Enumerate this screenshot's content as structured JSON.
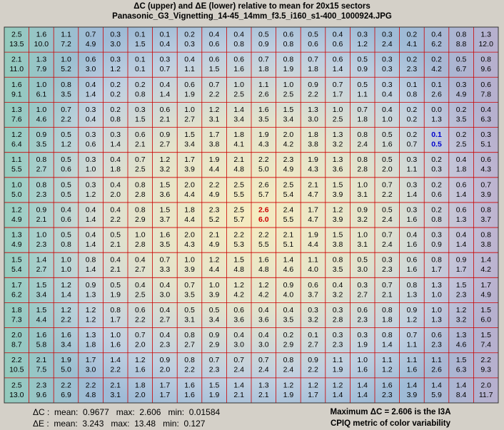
{
  "title_line1": "ΔC  (upper) and ΔE  (lower) relative to mean for 20x15 sectors",
  "title_line2": "Panasonic_G3_Vignetting_14-45_14mm_f3.5_i160_s1-400_1000924.JPG",
  "stats": {
    "dc_line": "ΔC :  mean:  0.9677   max:  2.606   min:  0.01584",
    "de_line": "ΔE :  mean:  3.243   max:  13.48   min:  0.127"
  },
  "metric": {
    "line1": "Maximum ΔC = 2.606 is the I3A",
    "line2": "CPIQ metric of color variability"
  },
  "colors": {
    "grid_line": "#cc0000",
    "max_marker": "#cc0000",
    "min_marker": "#0000cc",
    "border": "#333333"
  },
  "chart_data": {
    "type": "heatmap",
    "columns": 20,
    "rows": 15,
    "highlight_max": {
      "row": 7,
      "col": 10
    },
    "highlight_min": {
      "row": 4,
      "col": 17
    },
    "upper_dC": [
      [
        "2.5",
        "1.6",
        "1.1",
        "0.7",
        "0.3",
        "0.1",
        "0.1",
        "0.2",
        "0.4",
        "0.4",
        "0.5",
        "0.6",
        "0.5",
        "0.4",
        "0.3",
        "0.3",
        "0.2",
        "0.4",
        "0.8",
        "1.3"
      ],
      [
        "2.1",
        "1.3",
        "1.0",
        "0.6",
        "0.3",
        "0.1",
        "0.3",
        "0.4",
        "0.6",
        "0.6",
        "0.7",
        "0.8",
        "0.7",
        "0.6",
        "0.5",
        "0.3",
        "0.2",
        "0.2",
        "0.5",
        "0.8"
      ],
      [
        "1.6",
        "1.0",
        "0.8",
        "0.4",
        "0.2",
        "0.2",
        "0.4",
        "0.6",
        "0.7",
        "1.0",
        "1.1",
        "1.0",
        "0.9",
        "0.7",
        "0.5",
        "0.3",
        "0.1",
        "0.1",
        "0.3",
        "0.6"
      ],
      [
        "1.3",
        "1.0",
        "0.7",
        "0.3",
        "0.2",
        "0.3",
        "0.6",
        "1.0",
        "1.2",
        "1.4",
        "1.6",
        "1.5",
        "1.3",
        "1.0",
        "0.7",
        "0.4",
        "0.2",
        "0.0",
        "0.2",
        "0.4"
      ],
      [
        "1.2",
        "0.9",
        "0.5",
        "0.3",
        "0.3",
        "0.6",
        "0.9",
        "1.5",
        "1.7",
        "1.8",
        "1.9",
        "2.0",
        "1.8",
        "1.3",
        "0.8",
        "0.5",
        "0.2",
        "0.1",
        "0.2",
        "0.3"
      ],
      [
        "1.1",
        "0.8",
        "0.5",
        "0.3",
        "0.4",
        "0.7",
        "1.2",
        "1.7",
        "1.9",
        "2.1",
        "2.2",
        "2.3",
        "1.9",
        "1.3",
        "0.8",
        "0.5",
        "0.3",
        "0.2",
        "0.4",
        "0.6"
      ],
      [
        "1.0",
        "0.8",
        "0.5",
        "0.3",
        "0.4",
        "0.8",
        "1.5",
        "2.0",
        "2.2",
        "2.5",
        "2.6",
        "2.5",
        "2.1",
        "1.5",
        "1.0",
        "0.7",
        "0.3",
        "0.2",
        "0.6",
        "0.7"
      ],
      [
        "1.2",
        "0.9",
        "0.4",
        "0.4",
        "0.4",
        "0.8",
        "1.5",
        "1.8",
        "2.3",
        "2.5",
        "2.6",
        "2.4",
        "1.7",
        "1.2",
        "0.9",
        "0.5",
        "0.3",
        "0.2",
        "0.6",
        "0.8"
      ],
      [
        "1.3",
        "1.0",
        "0.5",
        "0.4",
        "0.5",
        "1.0",
        "1.6",
        "2.0",
        "2.1",
        "2.2",
        "2.2",
        "2.1",
        "1.9",
        "1.5",
        "1.0",
        "0.7",
        "0.4",
        "0.3",
        "0.4",
        "0.8"
      ],
      [
        "1.5",
        "1.4",
        "1.0",
        "0.8",
        "0.4",
        "0.4",
        "0.7",
        "1.0",
        "1.2",
        "1.5",
        "1.6",
        "1.4",
        "1.1",
        "0.8",
        "0.5",
        "0.3",
        "0.6",
        "0.8",
        "0.9",
        "1.4"
      ],
      [
        "1.7",
        "1.5",
        "1.2",
        "0.9",
        "0.5",
        "0.4",
        "0.4",
        "0.7",
        "1.0",
        "1.2",
        "1.2",
        "0.9",
        "0.6",
        "0.4",
        "0.3",
        "0.7",
        "0.8",
        "1.3",
        "1.5",
        "1.7"
      ],
      [
        "1.8",
        "1.5",
        "1.2",
        "1.2",
        "0.8",
        "0.6",
        "0.4",
        "0.5",
        "0.5",
        "0.6",
        "0.4",
        "0.4",
        "0.3",
        "0.3",
        "0.6",
        "0.8",
        "0.9",
        "1.0",
        "1.2",
        "1.5"
      ],
      [
        "2.0",
        "1.6",
        "1.6",
        "1.3",
        "1.0",
        "0.7",
        "0.4",
        "0.8",
        "0.9",
        "0.4",
        "0.4",
        "0.2",
        "0.1",
        "0.3",
        "0.3",
        "0.8",
        "0.7",
        "0.6",
        "1.3",
        "1.5"
      ],
      [
        "2.2",
        "2.1",
        "1.9",
        "1.7",
        "1.4",
        "1.2",
        "0.9",
        "0.8",
        "0.7",
        "0.7",
        "0.7",
        "0.8",
        "0.9",
        "1.1",
        "1.0",
        "1.1",
        "1.1",
        "1.1",
        "1.5",
        "2.2"
      ],
      [
        "2.5",
        "2.3",
        "2.2",
        "2.2",
        "2.1",
        "1.8",
        "1.7",
        "1.6",
        "1.5",
        "1.4",
        "1.3",
        "1.2",
        "1.2",
        "1.2",
        "1.4",
        "1.6",
        "1.4",
        "1.4",
        "1.4",
        "2.0"
      ]
    ],
    "lower_dE": [
      [
        "13.5",
        "10.0",
        "7.2",
        "4.9",
        "3.0",
        "1.5",
        "0.4",
        "0.3",
        "0.6",
        "0.8",
        "0.9",
        "0.8",
        "0.6",
        "0.6",
        "1.2",
        "2.4",
        "4.1",
        "6.2",
        "8.8",
        "12.0"
      ],
      [
        "11.0",
        "7.9",
        "5.2",
        "3.0",
        "1.2",
        "0.1",
        "0.7",
        "1.1",
        "1.5",
        "1.6",
        "1.8",
        "1.9",
        "1.8",
        "1.4",
        "0.9",
        "0.3",
        "2.3",
        "4.2",
        "6.7",
        "9.6"
      ],
      [
        "9.1",
        "6.1",
        "3.5",
        "1.4",
        "0.2",
        "0.8",
        "1.4",
        "1.9",
        "2.2",
        "2.5",
        "2.6",
        "2.5",
        "2.2",
        "1.7",
        "1.1",
        "0.4",
        "0.8",
        "2.6",
        "4.9",
        "7.8"
      ],
      [
        "7.6",
        "4.6",
        "2.2",
        "0.4",
        "0.8",
        "1.5",
        "2.1",
        "2.7",
        "3.1",
        "3.4",
        "3.5",
        "3.4",
        "3.0",
        "2.5",
        "1.8",
        "1.0",
        "0.2",
        "1.3",
        "3.5",
        "6.3"
      ],
      [
        "6.4",
        "3.5",
        "1.2",
        "0.6",
        "1.4",
        "2.1",
        "2.7",
        "3.4",
        "3.8",
        "4.1",
        "4.3",
        "4.2",
        "3.8",
        "3.2",
        "2.4",
        "1.6",
        "0.7",
        "0.5",
        "2.5",
        "5.1"
      ],
      [
        "5.5",
        "2.7",
        "0.6",
        "1.0",
        "1.8",
        "2.5",
        "3.2",
        "3.9",
        "4.4",
        "4.8",
        "5.0",
        "4.9",
        "4.3",
        "3.6",
        "2.8",
        "2.0",
        "1.1",
        "0.3",
        "1.8",
        "4.3"
      ],
      [
        "5.0",
        "2.3",
        "0.5",
        "1.2",
        "2.0",
        "2.8",
        "3.6",
        "4.4",
        "4.9",
        "5.5",
        "5.7",
        "5.4",
        "4.7",
        "3.9",
        "3.1",
        "2.2",
        "1.4",
        "0.6",
        "1.4",
        "3.9"
      ],
      [
        "4.9",
        "2.1",
        "0.6",
        "1.4",
        "2.2",
        "2.9",
        "3.7",
        "4.4",
        "5.2",
        "5.7",
        "6.0",
        "5.5",
        "4.7",
        "3.9",
        "3.2",
        "2.4",
        "1.6",
        "0.8",
        "1.3",
        "3.7"
      ],
      [
        "4.9",
        "2.3",
        "0.8",
        "1.4",
        "2.1",
        "2.8",
        "3.5",
        "4.3",
        "4.9",
        "5.3",
        "5.5",
        "5.1",
        "4.4",
        "3.8",
        "3.1",
        "2.4",
        "1.6",
        "0.9",
        "1.4",
        "3.8"
      ],
      [
        "5.4",
        "2.7",
        "1.0",
        "1.4",
        "2.1",
        "2.7",
        "3.3",
        "3.9",
        "4.4",
        "4.8",
        "4.8",
        "4.6",
        "4.0",
        "3.5",
        "3.0",
        "2.3",
        "1.6",
        "1.7",
        "1.7",
        "4.2"
      ],
      [
        "6.2",
        "3.4",
        "1.4",
        "1.3",
        "1.9",
        "2.5",
        "3.0",
        "3.5",
        "3.9",
        "4.2",
        "4.2",
        "4.0",
        "3.7",
        "3.2",
        "2.7",
        "2.1",
        "1.3",
        "1.0",
        "2.3",
        "4.9"
      ],
      [
        "7.3",
        "4.4",
        "2.2",
        "1.2",
        "1.7",
        "2.2",
        "2.7",
        "3.1",
        "3.4",
        "3.6",
        "3.6",
        "3.5",
        "3.2",
        "2.8",
        "2.3",
        "1.8",
        "1.2",
        "1.3",
        "3.2",
        "6.0"
      ],
      [
        "8.7",
        "5.8",
        "3.4",
        "1.8",
        "1.6",
        "2.0",
        "2.3",
        "2.7",
        "2.9",
        "3.0",
        "3.0",
        "2.9",
        "2.7",
        "2.3",
        "1.9",
        "1.4",
        "1.1",
        "2.3",
        "4.6",
        "7.4"
      ],
      [
        "10.5",
        "7.5",
        "5.0",
        "3.0",
        "2.2",
        "1.6",
        "2.0",
        "2.2",
        "2.3",
        "2.4",
        "2.4",
        "2.4",
        "2.2",
        "1.9",
        "1.6",
        "1.2",
        "1.6",
        "2.6",
        "6.3",
        "9.3"
      ],
      [
        "13.0",
        "9.6",
        "6.9",
        "4.8",
        "3.1",
        "2.0",
        "1.7",
        "1.6",
        "1.9",
        "2.1",
        "2.1",
        "1.9",
        "1.7",
        "1.4",
        "1.4",
        "2.3",
        "3.9",
        "5.9",
        "8.4",
        "11.7"
      ]
    ]
  }
}
